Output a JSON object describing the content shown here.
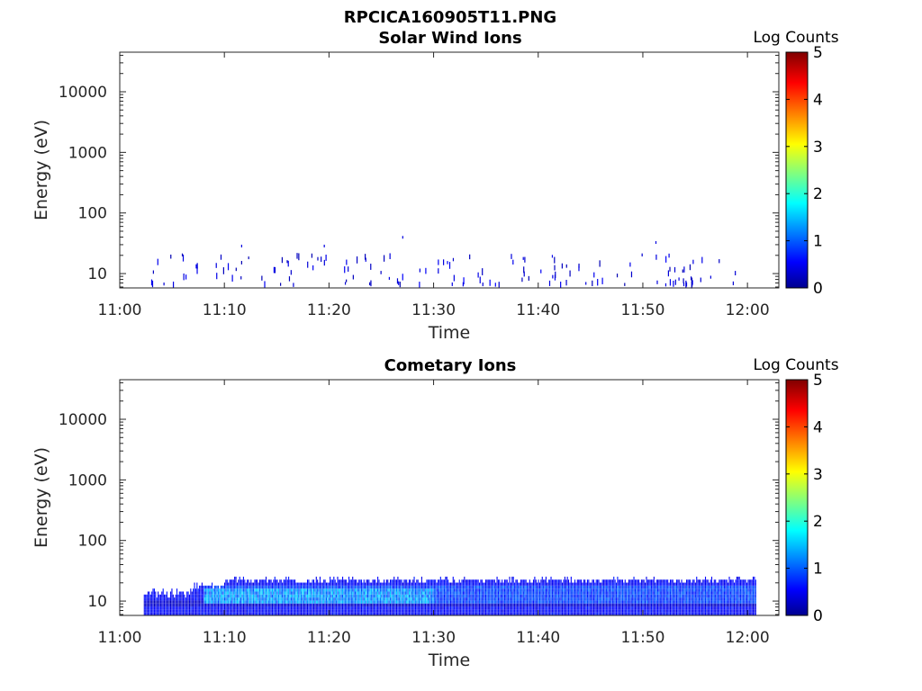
{
  "figure": {
    "title": "RPCICA160905T11.PNG"
  },
  "colormap": [
    "#00008f",
    "#0000ff",
    "#00ffff",
    "#ffff00",
    "#ff0000",
    "#800000"
  ],
  "chart_data": [
    {
      "type": "heatmap",
      "title": "Solar Wind Ions",
      "xlabel": "Time",
      "ylabel": "Energy (eV)",
      "x_range_minutes": [
        0,
        63
      ],
      "x_ticks": [
        "11:00",
        "11:10",
        "11:20",
        "11:30",
        "11:40",
        "11:50",
        "12:00"
      ],
      "y_scale": "log",
      "y_range": [
        5.8,
        45000
      ],
      "y_ticks": [
        "10",
        "100",
        "1000",
        "10000"
      ],
      "colorbar": {
        "label": "Log Counts",
        "range": [
          0,
          5
        ],
        "ticks": [
          "0",
          "1",
          "2",
          "3",
          "4",
          "5"
        ]
      },
      "data_extent": "sparse low-count hits (log counts < 1) between ~11:03 and ~11:59, mostly at 6–20 eV, isolated hits up to ~40 eV"
    },
    {
      "type": "heatmap",
      "title": "Cometary Ions",
      "xlabel": "Time",
      "ylabel": "Energy (eV)",
      "x_range_minutes": [
        0,
        63
      ],
      "x_ticks": [
        "11:00",
        "11:10",
        "11:20",
        "11:30",
        "11:40",
        "11:50",
        "12:00"
      ],
      "y_scale": "log",
      "y_range": [
        5.8,
        45000
      ],
      "y_ticks": [
        "10",
        "100",
        "1000",
        "10000"
      ],
      "colorbar": {
        "label": "Log Counts",
        "range": [
          0,
          5
        ],
        "ticks": [
          "0",
          "1",
          "2",
          "3",
          "4",
          "5"
        ]
      },
      "data_extent": "continuous band from ~11:02 to ~12:00 at ~6–22 eV, log counts ~0.3–1.5, strongest ~11:10–11:28"
    }
  ]
}
